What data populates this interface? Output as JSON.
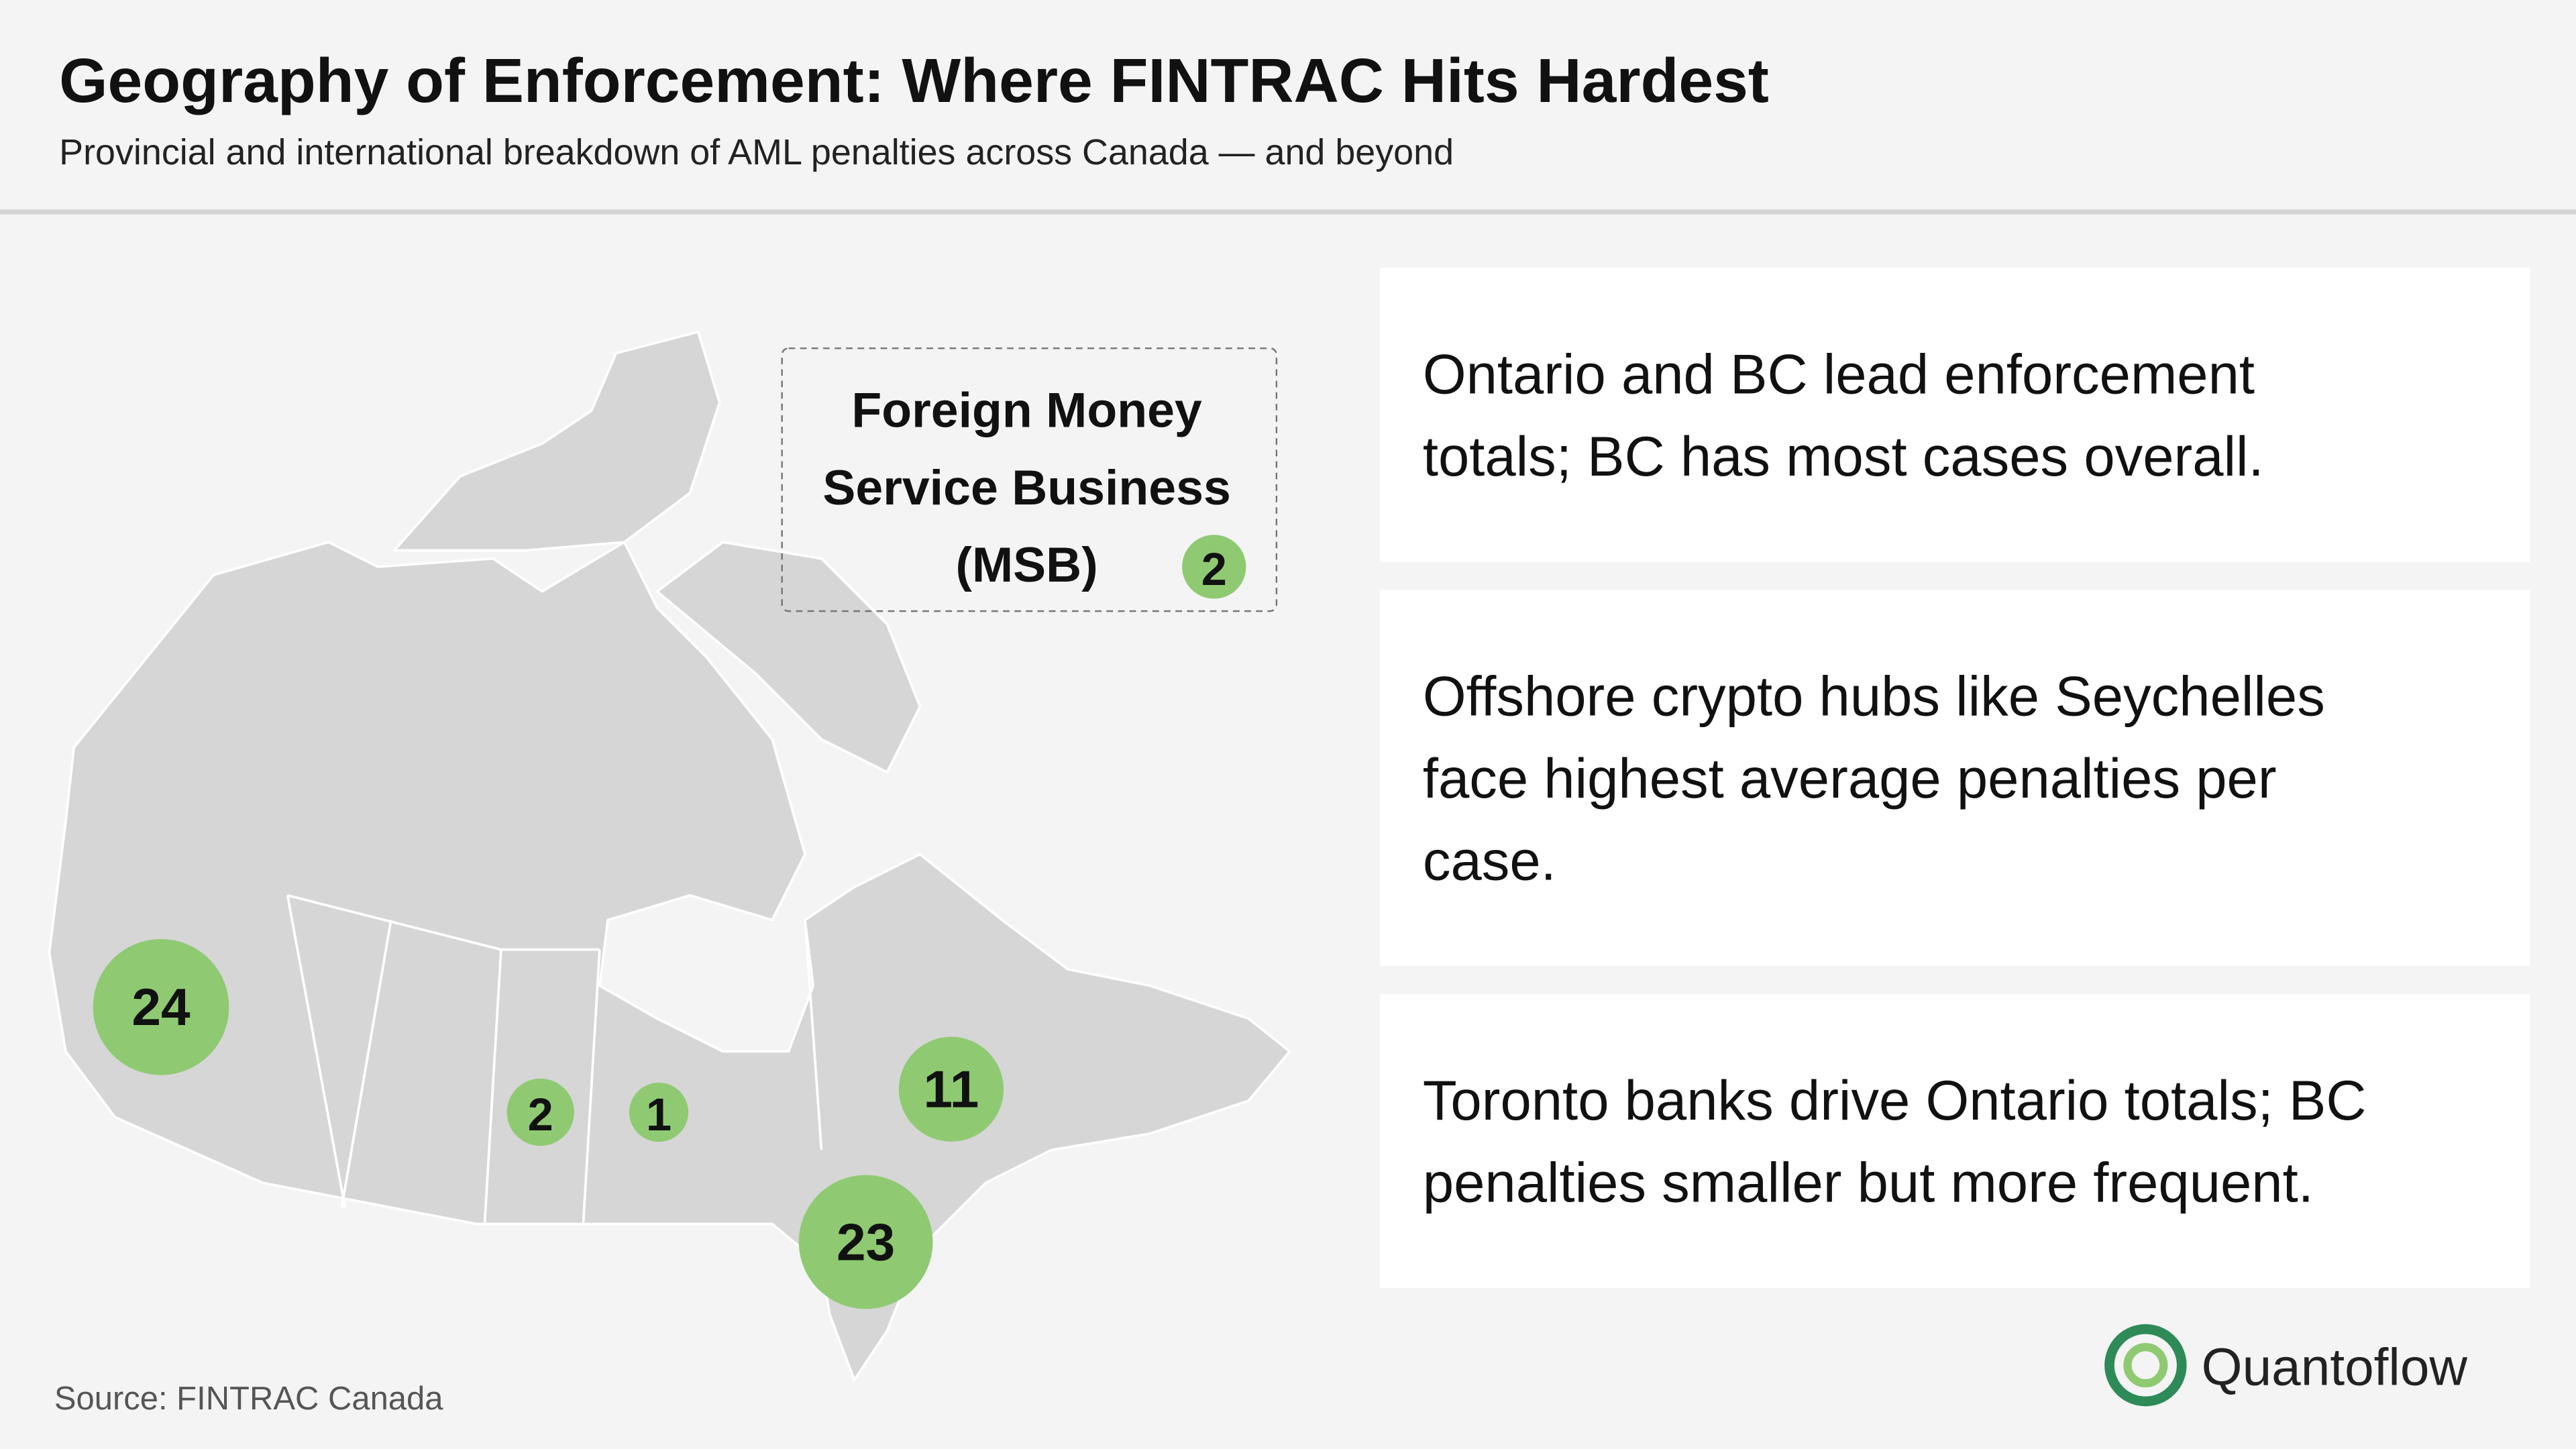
{
  "header": {
    "title": "Geography of Enforcement: Where FINTRAC Hits Hardest",
    "subtitle": "Provincial and international breakdown of AML penalties across Canada — and beyond"
  },
  "map": {
    "bubbles": [
      {
        "value": 24
      },
      {
        "value": 2
      },
      {
        "value": 1
      },
      {
        "value": 11
      },
      {
        "value": 23
      }
    ],
    "color": "#8fca72",
    "msb_box": {
      "lines": [
        "Foreign Money",
        "Service Business",
        "(MSB)"
      ],
      "value": 2
    }
  },
  "insights": [
    {
      "lines": [
        "Ontario and BC lead enforcement",
        "totals; BC has most cases overall."
      ]
    },
    {
      "lines": [
        "Offshore crypto hubs like Seychelles",
        "face highest average penalties per",
        "case."
      ]
    },
    {
      "lines": [
        "Toronto banks drive Ontario totals; BC",
        "penalties smaller but more frequent."
      ]
    }
  ],
  "source": "Source: FINTRAC Canada",
  "brand": "Quantoflow"
}
